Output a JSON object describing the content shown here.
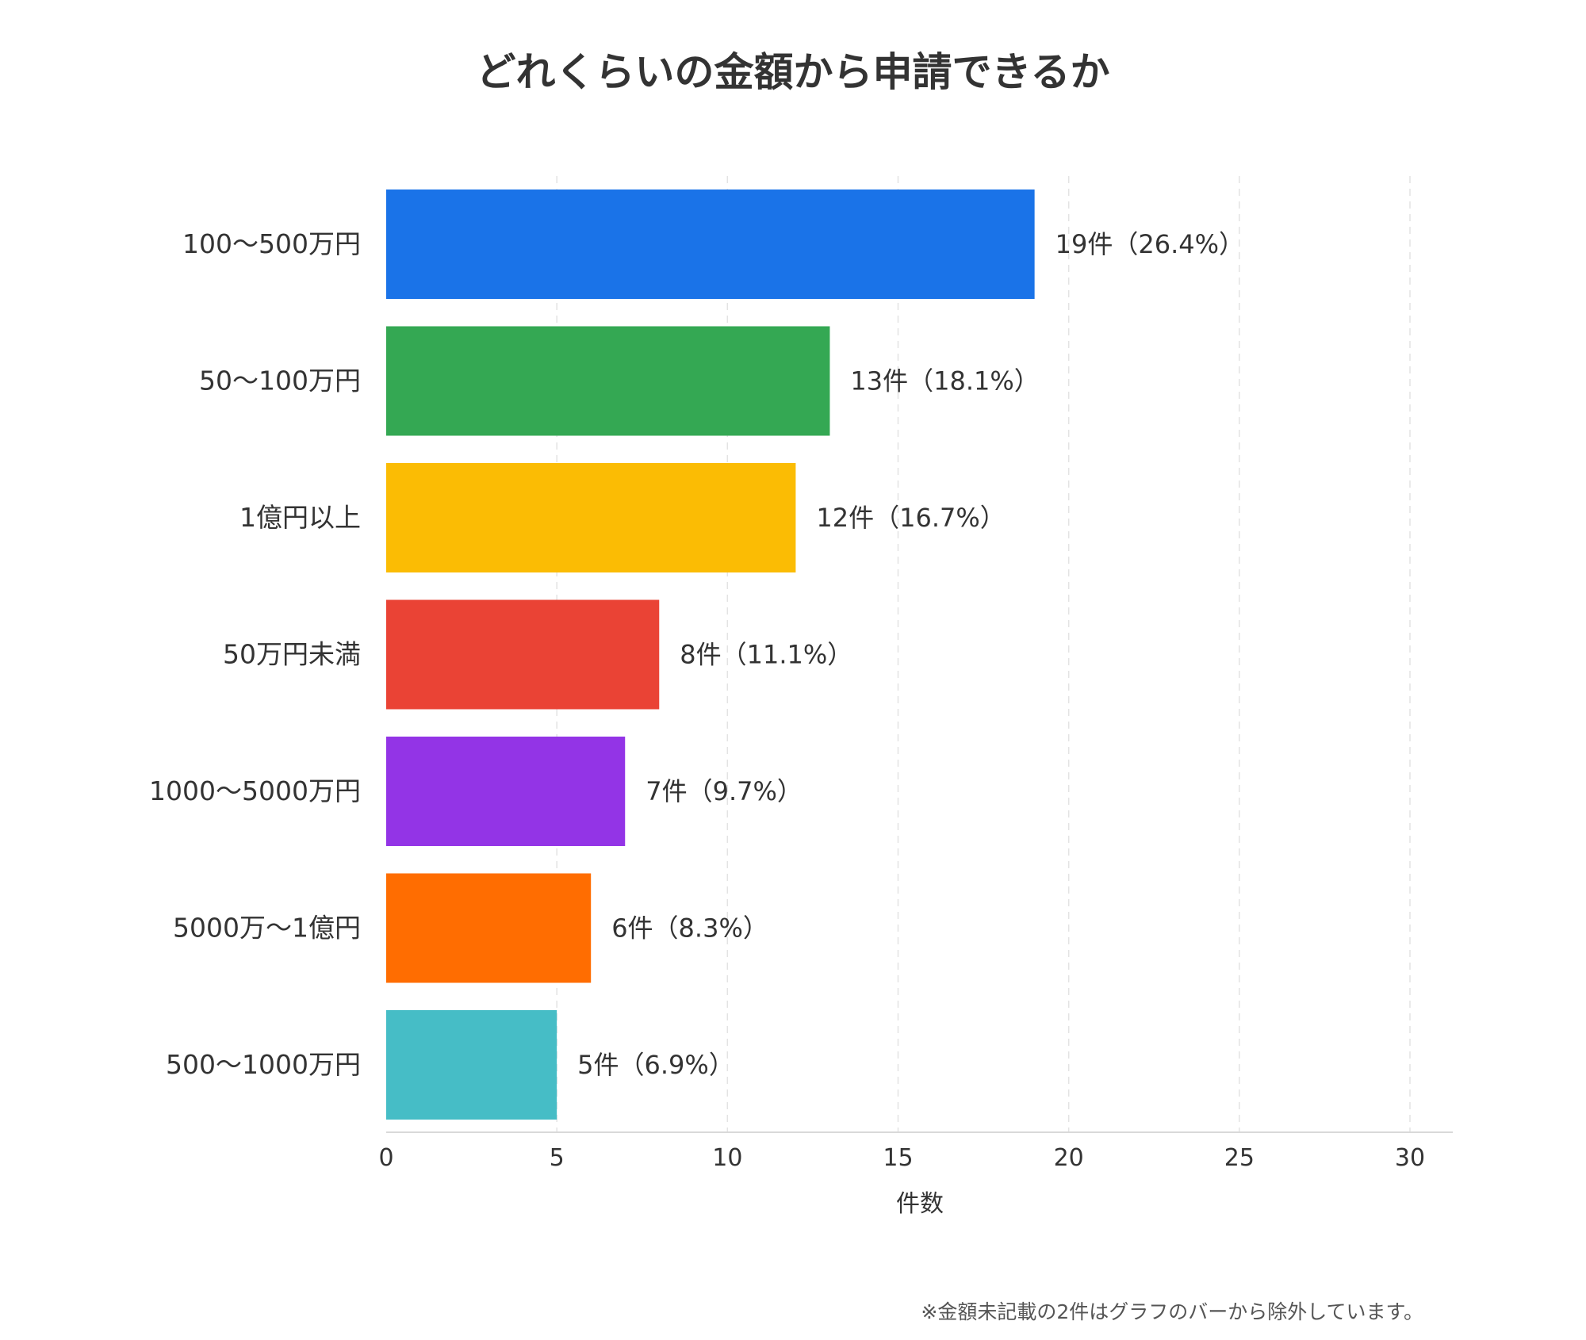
{
  "chart_data": {
    "type": "bar",
    "orientation": "horizontal",
    "title": "どれくらいの金額から申請できるか",
    "xlabel": "件数",
    "ylabel": "",
    "xlim": [
      0,
      30
    ],
    "x_ticks": [
      0,
      5,
      10,
      15,
      20,
      25,
      30
    ],
    "grid": "vertical dashed",
    "categories": [
      "100〜500万円",
      "50〜100万円",
      "1億円以上",
      "50万円未満",
      "1000〜5000万円",
      "5000万〜1億円",
      "500〜1000万円"
    ],
    "values": [
      19,
      13,
      12,
      8,
      7,
      6,
      5
    ],
    "data_labels": [
      "19件（26.4%）",
      "13件（18.1%）",
      "12件（16.7%）",
      "8件（11.1%）",
      "7件（9.7%）",
      "6件（8.3%）",
      "5件（6.9%）"
    ],
    "colors": [
      "#1a73e8",
      "#34a853",
      "#fbbc04",
      "#ea4335",
      "#9334e6",
      "#ff6d01",
      "#46bdc6"
    ],
    "footnote": "※金額未記載の2件はグラフのバーから除外しています。"
  }
}
